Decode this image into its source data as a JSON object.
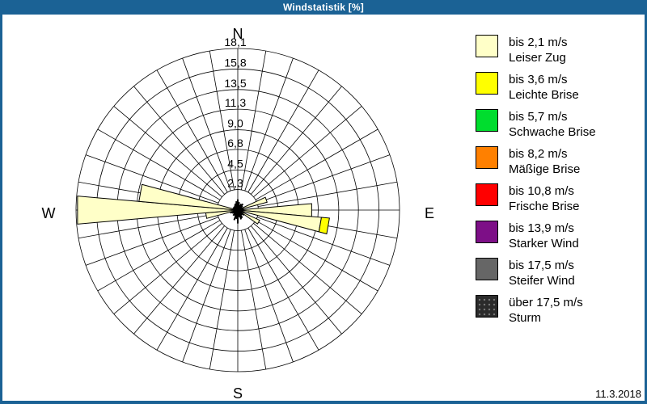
{
  "window": {
    "title": "Windstatistik [%]",
    "date": "11.3.2018",
    "frame_color": "#1B6295"
  },
  "compass": {
    "north": "N",
    "east": "E",
    "south": "S",
    "west": "W"
  },
  "legend": {
    "classes": [
      {
        "label": "bis 2,1 m/s",
        "name": "Leiser Zug",
        "color": "#FFFFC8",
        "pattern": "solid"
      },
      {
        "label": "bis 3,6 m/s",
        "name": "Leichte Brise",
        "color": "#FFFF00",
        "pattern": "solid"
      },
      {
        "label": "bis 5,7 m/s",
        "name": "Schwache Brise",
        "color": "#00DD2E",
        "pattern": "solid"
      },
      {
        "label": "bis 8,2 m/s",
        "name": "Mäßige Brise",
        "color": "#FF8000",
        "pattern": "solid"
      },
      {
        "label": "bis 10,8 m/s",
        "name": "Frische Brise",
        "color": "#FF0000",
        "pattern": "solid"
      },
      {
        "label": "bis 13,9 m/s",
        "name": "Starker Wind",
        "color": "#7D0F87",
        "pattern": "solid"
      },
      {
        "label": "bis 17,5 m/s",
        "name": "Steifer Wind",
        "color": "#666666",
        "pattern": "solid"
      },
      {
        "label": "über 17,5 m/s",
        "name": "Sturm",
        "color": "#2B2B2B",
        "pattern": "dots"
      }
    ]
  },
  "chart_data": {
    "type": "windrose",
    "title": "Windstatistik [%]",
    "unit": "%",
    "sectors": 36,
    "sector_width_deg": 10,
    "grid": true,
    "max_value": 18.1,
    "ring_values": [
      2.3,
      4.5,
      6.8,
      9.0,
      11.3,
      13.5,
      15.8,
      18.1
    ],
    "ring_labels": [
      "2,3",
      "4,5",
      "6,8",
      "9,0",
      "11,3",
      "13,5",
      "15,8",
      "18,1"
    ],
    "petals": [
      {
        "direction_deg": 70,
        "segments": [
          {
            "class_index": 0,
            "value": 3.4
          }
        ]
      },
      {
        "direction_deg": 90,
        "segments": [
          {
            "class_index": 0,
            "value": 8.3
          }
        ]
      },
      {
        "direction_deg": 100,
        "segments": [
          {
            "class_index": 0,
            "value": 9.4
          },
          {
            "class_index": 1,
            "value": 0.9
          }
        ]
      },
      {
        "direction_deg": 120,
        "segments": [
          {
            "class_index": 0,
            "value": 2.7
          }
        ]
      },
      {
        "direction_deg": 260,
        "segments": [
          {
            "class_index": 0,
            "value": 3.6
          }
        ]
      },
      {
        "direction_deg": 270,
        "segments": [
          {
            "class_index": 0,
            "value": 18.0
          }
        ]
      },
      {
        "direction_deg": 280,
        "segments": [
          {
            "class_index": 0,
            "value": 11.1
          }
        ]
      }
    ],
    "minor_spikes": [
      {
        "direction_deg": 0,
        "value": 1.2
      },
      {
        "direction_deg": 10,
        "value": 0.9
      },
      {
        "direction_deg": 20,
        "value": 0.6
      },
      {
        "direction_deg": 30,
        "value": 0.8
      },
      {
        "direction_deg": 40,
        "value": 0.9
      },
      {
        "direction_deg": 50,
        "value": 0.7
      },
      {
        "direction_deg": 60,
        "value": 0.5
      },
      {
        "direction_deg": 80,
        "value": 0.7
      },
      {
        "direction_deg": 110,
        "value": 0.8
      },
      {
        "direction_deg": 130,
        "value": 0.9
      },
      {
        "direction_deg": 140,
        "value": 0.7
      },
      {
        "direction_deg": 150,
        "value": 1.0
      },
      {
        "direction_deg": 160,
        "value": 1.1
      },
      {
        "direction_deg": 170,
        "value": 0.8
      },
      {
        "direction_deg": 180,
        "value": 1.5
      },
      {
        "direction_deg": 190,
        "value": 1.0
      },
      {
        "direction_deg": 200,
        "value": 1.2
      },
      {
        "direction_deg": 210,
        "value": 0.7
      },
      {
        "direction_deg": 220,
        "value": 0.8
      },
      {
        "direction_deg": 230,
        "value": 0.6
      },
      {
        "direction_deg": 240,
        "value": 0.7
      },
      {
        "direction_deg": 250,
        "value": 0.9
      },
      {
        "direction_deg": 290,
        "value": 0.6
      },
      {
        "direction_deg": 300,
        "value": 0.5
      },
      {
        "direction_deg": 310,
        "value": 0.6
      },
      {
        "direction_deg": 320,
        "value": 0.5
      },
      {
        "direction_deg": 330,
        "value": 0.7
      },
      {
        "direction_deg": 340,
        "value": 0.8
      },
      {
        "direction_deg": 350,
        "value": 1.0
      }
    ]
  }
}
